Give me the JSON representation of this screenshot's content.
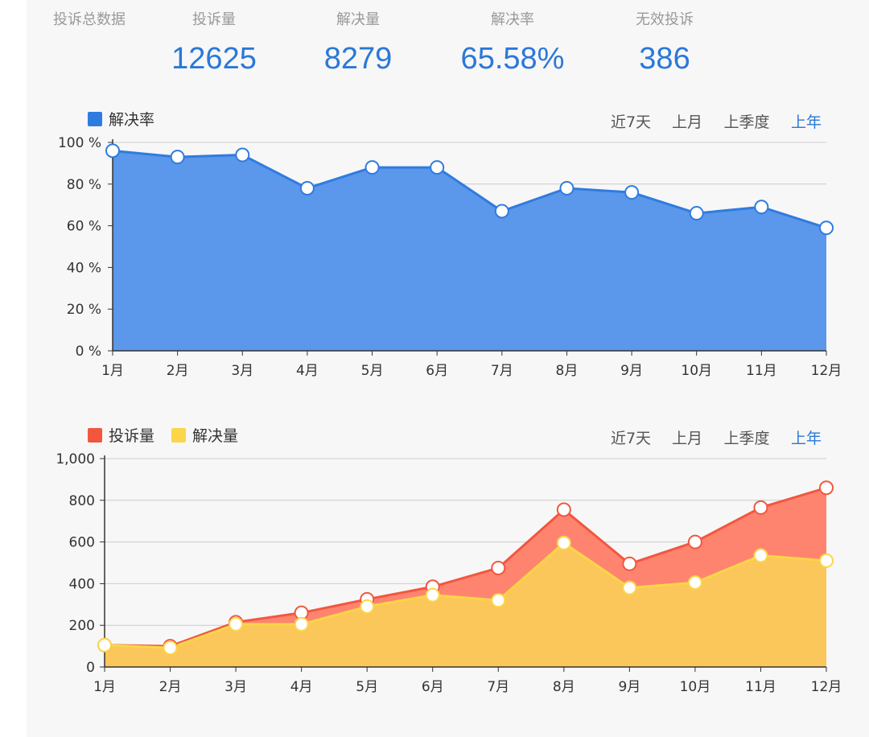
{
  "summary": {
    "title": "投诉总数据",
    "stats": [
      {
        "label": "投诉量",
        "value": "12625"
      },
      {
        "label": "解决量",
        "value": "8279"
      },
      {
        "label": "解决率",
        "value": "65.58%"
      },
      {
        "label": "无效投诉",
        "value": "386"
      }
    ]
  },
  "colors": {
    "rate_area": "#5b97ea",
    "rate_line": "#2f7ce0",
    "complaint_area": "#ff8470",
    "complaint_line": "#f2573e",
    "resolved_area": "#fbc75a",
    "resolved_line": "#fbd648",
    "active_filter": "#2a78d8"
  },
  "filters": [
    "近7天",
    "上月",
    "上季度",
    "上年"
  ],
  "active_filter": "上年",
  "chart_data": [
    {
      "type": "area",
      "categories": [
        "1月",
        "2月",
        "3月",
        "4月",
        "5月",
        "6月",
        "7月",
        "8月",
        "9月",
        "10月",
        "11月",
        "12月"
      ],
      "series": [
        {
          "name": "解决率",
          "values": [
            96,
            93,
            94,
            78,
            88,
            88,
            67,
            78,
            76,
            66,
            69,
            59
          ]
        }
      ],
      "ylim": [
        0,
        100
      ],
      "yticks": [
        0,
        20,
        40,
        60,
        80,
        100
      ],
      "ytick_labels": [
        "0 %",
        "20 %",
        "40 %",
        "60 %",
        "80 %",
        "100 %"
      ],
      "legend": "top-left",
      "grid": true
    },
    {
      "type": "area",
      "categories": [
        "1月",
        "2月",
        "3月",
        "4月",
        "5月",
        "6月",
        "7月",
        "8月",
        "9月",
        "10月",
        "11月",
        "12月"
      ],
      "series": [
        {
          "name": "投诉量",
          "values": [
            105,
            100,
            215,
            260,
            325,
            385,
            475,
            755,
            495,
            600,
            765,
            860
          ]
        },
        {
          "name": "解决量",
          "values": [
            105,
            92,
            205,
            205,
            290,
            345,
            320,
            595,
            380,
            405,
            535,
            510
          ]
        }
      ],
      "ylim": [
        0,
        1000
      ],
      "yticks": [
        0,
        200,
        400,
        600,
        800,
        1000
      ],
      "ytick_labels": [
        "0",
        "200",
        "400",
        "600",
        "800",
        "1,000"
      ],
      "legend": "top-left",
      "grid": true
    }
  ]
}
